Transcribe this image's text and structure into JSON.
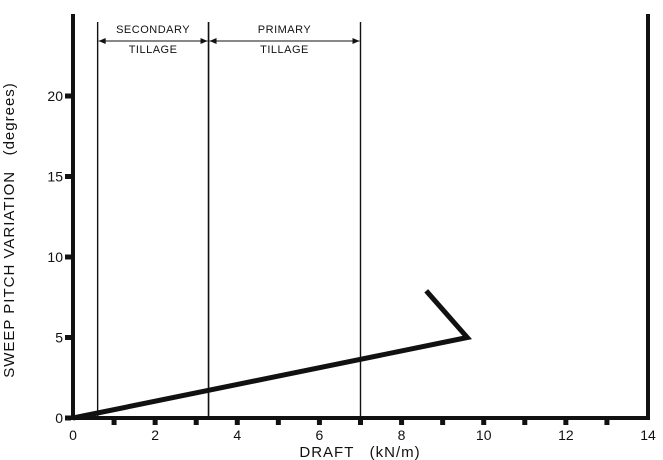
{
  "chart_data": {
    "type": "line",
    "title": "",
    "xlabel": "DRAFT   (kN/m)",
    "ylabel": "SWEEP PITCH VARIATION   (degrees)",
    "xlim": [
      0,
      14
    ],
    "ylim": [
      0,
      25
    ],
    "x_ticks": [
      0,
      2,
      4,
      6,
      8,
      10,
      12,
      14
    ],
    "y_ticks": [
      0,
      5,
      10,
      15,
      20
    ],
    "grid": false,
    "series": [
      {
        "x": [
          0,
          9.6,
          8.6
        ],
        "y": [
          0,
          5.0,
          7.9
        ]
      }
    ],
    "regions": [
      {
        "label_line1": "SECONDARY",
        "label_line2": "TILLAGE",
        "x_start": 0.6,
        "x_end": 3.3
      },
      {
        "label_line1": "PRIMARY",
        "label_line2": "TILLAGE",
        "x_start": 3.3,
        "x_end": 7.0
      }
    ]
  }
}
